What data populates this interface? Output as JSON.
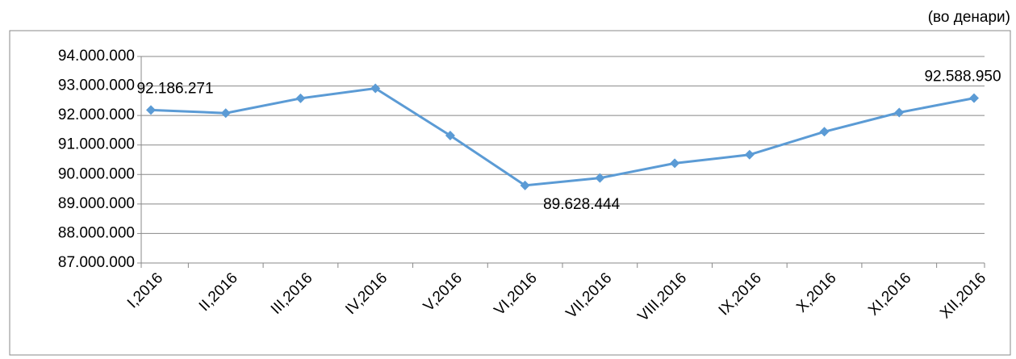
{
  "chart_data": {
    "type": "line",
    "unit_note": "(во денари)",
    "categories": [
      "I,2016",
      "II,2016",
      "III,2016",
      "IV,2016",
      "V,2016",
      "VI,2016",
      "VII,2016",
      "VIII,2016",
      "IX,2016",
      "X,2016",
      "XI,2016",
      "XII,2016"
    ],
    "series": [
      {
        "color": "#5b9bd5",
        "values": [
          92186271,
          92080000,
          92580000,
          92920000,
          91320000,
          89628444,
          89880000,
          90380000,
          90670000,
          91450000,
          92100000,
          92588950
        ],
        "value_labels": [
          "92.186.271",
          null,
          null,
          null,
          null,
          "89.628.444",
          null,
          null,
          null,
          null,
          null,
          "92.588.950"
        ]
      }
    ],
    "ylim": [
      87000000,
      94000000
    ],
    "yticks": [
      {
        "value": 87000000,
        "label": "87.000.000"
      },
      {
        "value": 88000000,
        "label": "88.000.000"
      },
      {
        "value": 89000000,
        "label": "89.000.000"
      },
      {
        "value": 90000000,
        "label": "90.000.000"
      },
      {
        "value": 91000000,
        "label": "91.000.000"
      },
      {
        "value": 92000000,
        "label": "92.000.000"
      },
      {
        "value": 93000000,
        "label": "93.000.000"
      },
      {
        "value": 94000000,
        "label": "94.000.000"
      }
    ],
    "grid": true
  }
}
